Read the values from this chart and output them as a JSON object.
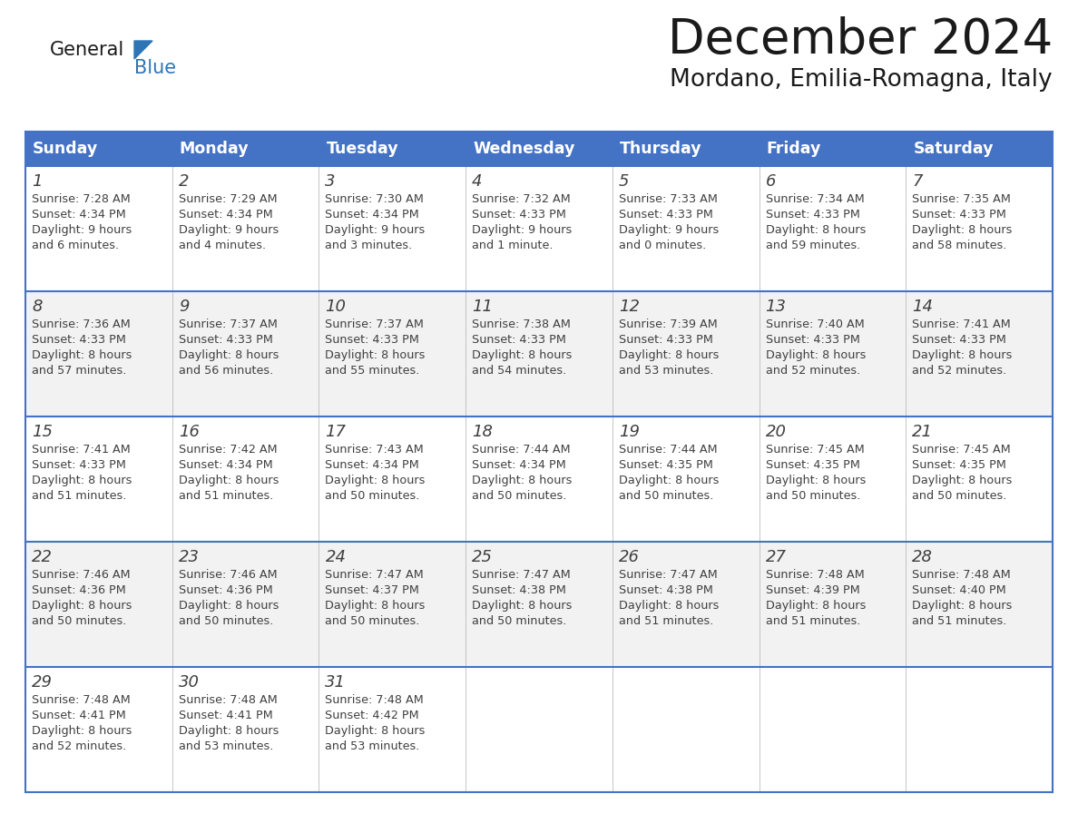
{
  "title": "December 2024",
  "subtitle": "Mordano, Emilia-Romagna, Italy",
  "header_bg_color": "#4472C4",
  "header_text_color": "#FFFFFF",
  "row_bg_color_odd": "#FFFFFF",
  "row_bg_color_even": "#F2F2F2",
  "border_color": "#4472C4",
  "cell_border_color": "#AAAAAA",
  "text_color": "#404040",
  "days_of_week": [
    "Sunday",
    "Monday",
    "Tuesday",
    "Wednesday",
    "Thursday",
    "Friday",
    "Saturday"
  ],
  "weeks": [
    [
      {
        "day": 1,
        "sunrise": "7:28 AM",
        "sunset": "4:34 PM",
        "daylight_line1": "9 hours",
        "daylight_line2": "and 6 minutes."
      },
      {
        "day": 2,
        "sunrise": "7:29 AM",
        "sunset": "4:34 PM",
        "daylight_line1": "9 hours",
        "daylight_line2": "and 4 minutes."
      },
      {
        "day": 3,
        "sunrise": "7:30 AM",
        "sunset": "4:34 PM",
        "daylight_line1": "9 hours",
        "daylight_line2": "and 3 minutes."
      },
      {
        "day": 4,
        "sunrise": "7:32 AM",
        "sunset": "4:33 PM",
        "daylight_line1": "9 hours",
        "daylight_line2": "and 1 minute."
      },
      {
        "day": 5,
        "sunrise": "7:33 AM",
        "sunset": "4:33 PM",
        "daylight_line1": "9 hours",
        "daylight_line2": "and 0 minutes."
      },
      {
        "day": 6,
        "sunrise": "7:34 AM",
        "sunset": "4:33 PM",
        "daylight_line1": "8 hours",
        "daylight_line2": "and 59 minutes."
      },
      {
        "day": 7,
        "sunrise": "7:35 AM",
        "sunset": "4:33 PM",
        "daylight_line1": "8 hours",
        "daylight_line2": "and 58 minutes."
      }
    ],
    [
      {
        "day": 8,
        "sunrise": "7:36 AM",
        "sunset": "4:33 PM",
        "daylight_line1": "8 hours",
        "daylight_line2": "and 57 minutes."
      },
      {
        "day": 9,
        "sunrise": "7:37 AM",
        "sunset": "4:33 PM",
        "daylight_line1": "8 hours",
        "daylight_line2": "and 56 minutes."
      },
      {
        "day": 10,
        "sunrise": "7:37 AM",
        "sunset": "4:33 PM",
        "daylight_line1": "8 hours",
        "daylight_line2": "and 55 minutes."
      },
      {
        "day": 11,
        "sunrise": "7:38 AM",
        "sunset": "4:33 PM",
        "daylight_line1": "8 hours",
        "daylight_line2": "and 54 minutes."
      },
      {
        "day": 12,
        "sunrise": "7:39 AM",
        "sunset": "4:33 PM",
        "daylight_line1": "8 hours",
        "daylight_line2": "and 53 minutes."
      },
      {
        "day": 13,
        "sunrise": "7:40 AM",
        "sunset": "4:33 PM",
        "daylight_line1": "8 hours",
        "daylight_line2": "and 52 minutes."
      },
      {
        "day": 14,
        "sunrise": "7:41 AM",
        "sunset": "4:33 PM",
        "daylight_line1": "8 hours",
        "daylight_line2": "and 52 minutes."
      }
    ],
    [
      {
        "day": 15,
        "sunrise": "7:41 AM",
        "sunset": "4:33 PM",
        "daylight_line1": "8 hours",
        "daylight_line2": "and 51 minutes."
      },
      {
        "day": 16,
        "sunrise": "7:42 AM",
        "sunset": "4:34 PM",
        "daylight_line1": "8 hours",
        "daylight_line2": "and 51 minutes."
      },
      {
        "day": 17,
        "sunrise": "7:43 AM",
        "sunset": "4:34 PM",
        "daylight_line1": "8 hours",
        "daylight_line2": "and 50 minutes."
      },
      {
        "day": 18,
        "sunrise": "7:44 AM",
        "sunset": "4:34 PM",
        "daylight_line1": "8 hours",
        "daylight_line2": "and 50 minutes."
      },
      {
        "day": 19,
        "sunrise": "7:44 AM",
        "sunset": "4:35 PM",
        "daylight_line1": "8 hours",
        "daylight_line2": "and 50 minutes."
      },
      {
        "day": 20,
        "sunrise": "7:45 AM",
        "sunset": "4:35 PM",
        "daylight_line1": "8 hours",
        "daylight_line2": "and 50 minutes."
      },
      {
        "day": 21,
        "sunrise": "7:45 AM",
        "sunset": "4:35 PM",
        "daylight_line1": "8 hours",
        "daylight_line2": "and 50 minutes."
      }
    ],
    [
      {
        "day": 22,
        "sunrise": "7:46 AM",
        "sunset": "4:36 PM",
        "daylight_line1": "8 hours",
        "daylight_line2": "and 50 minutes."
      },
      {
        "day": 23,
        "sunrise": "7:46 AM",
        "sunset": "4:36 PM",
        "daylight_line1": "8 hours",
        "daylight_line2": "and 50 minutes."
      },
      {
        "day": 24,
        "sunrise": "7:47 AM",
        "sunset": "4:37 PM",
        "daylight_line1": "8 hours",
        "daylight_line2": "and 50 minutes."
      },
      {
        "day": 25,
        "sunrise": "7:47 AM",
        "sunset": "4:38 PM",
        "daylight_line1": "8 hours",
        "daylight_line2": "and 50 minutes."
      },
      {
        "day": 26,
        "sunrise": "7:47 AM",
        "sunset": "4:38 PM",
        "daylight_line1": "8 hours",
        "daylight_line2": "and 51 minutes."
      },
      {
        "day": 27,
        "sunrise": "7:48 AM",
        "sunset": "4:39 PM",
        "daylight_line1": "8 hours",
        "daylight_line2": "and 51 minutes."
      },
      {
        "day": 28,
        "sunrise": "7:48 AM",
        "sunset": "4:40 PM",
        "daylight_line1": "8 hours",
        "daylight_line2": "and 51 minutes."
      }
    ],
    [
      {
        "day": 29,
        "sunrise": "7:48 AM",
        "sunset": "4:41 PM",
        "daylight_line1": "8 hours",
        "daylight_line2": "and 52 minutes."
      },
      {
        "day": 30,
        "sunrise": "7:48 AM",
        "sunset": "4:41 PM",
        "daylight_line1": "8 hours",
        "daylight_line2": "and 53 minutes."
      },
      {
        "day": 31,
        "sunrise": "7:48 AM",
        "sunset": "4:42 PM",
        "daylight_line1": "8 hours",
        "daylight_line2": "and 53 minutes."
      },
      null,
      null,
      null,
      null
    ]
  ],
  "logo_triangle_color": "#2E75B6",
  "logo_blue_color": "#2E75B6",
  "logo_general_color": "#1a1a1a",
  "title_color": "#1a1a1a",
  "subtitle_color": "#1a1a1a"
}
